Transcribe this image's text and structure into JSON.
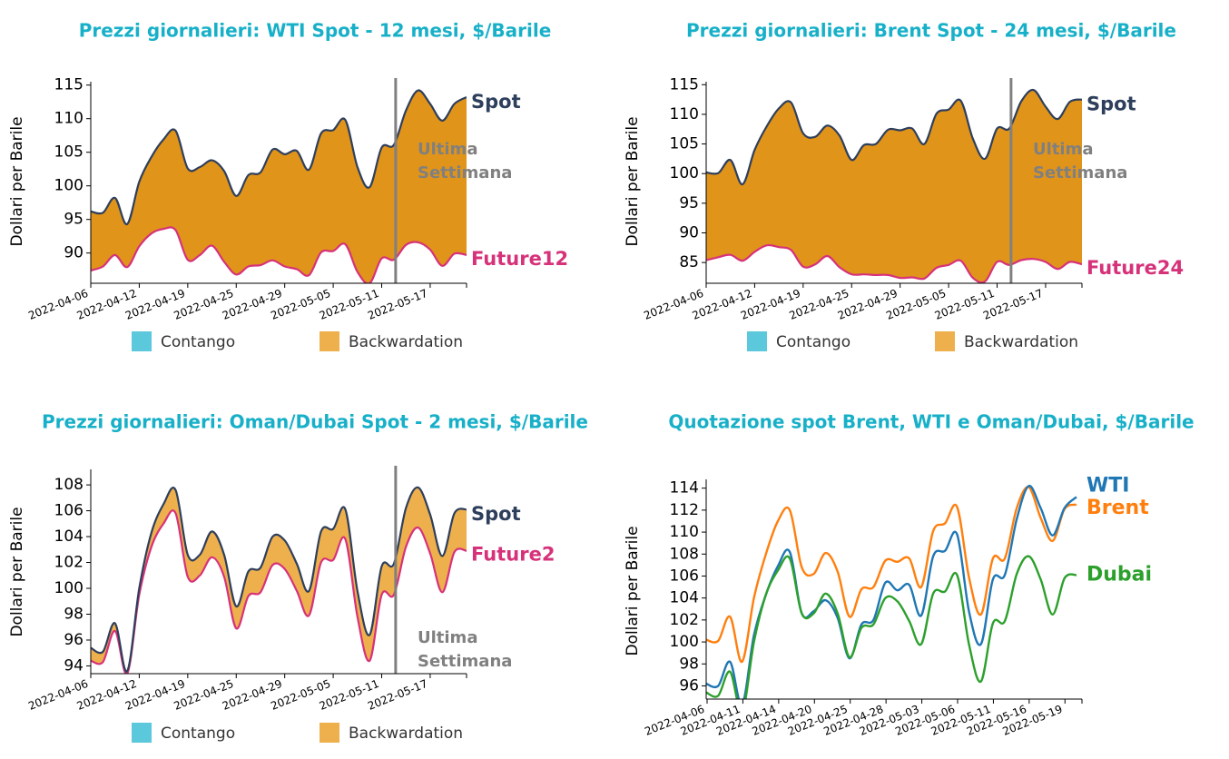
{
  "colors": {
    "title": "#17b0c8",
    "spot": "#2e3f5c",
    "future": "#d6327a",
    "backwardation_dark": "#e0941a",
    "backwardation_light": "#eeb04c",
    "contango": "#5bc8dc",
    "vline": "#808080",
    "wti": "#1f77b4",
    "brent": "#ff7f0e",
    "dubai": "#2ca02c"
  },
  "legend": {
    "contango": "Contango",
    "backwardation": "Backwardation"
  },
  "chart_data": [
    {
      "type": "area",
      "title": "Prezzi giornalieri: WTI Spot - 12 mesi, $/Barile",
      "ylabel": "Dollari per Barile",
      "ylim": [
        85.5,
        115.5
      ],
      "yticks": [
        90,
        95,
        100,
        105,
        110,
        115
      ],
      "xticks": [
        "2022-04-06",
        "2022-04-12",
        "2022-04-19",
        "2022-04-25",
        "2022-04-29",
        "2022-05-05",
        "2022-05-11",
        "2022-05-17"
      ],
      "fill_shade": "dark",
      "annotation": [
        "Ultima",
        "Settimana"
      ],
      "annotation_pos": "mid",
      "last_week_index": 34,
      "series": [
        {
          "name": "Spot",
          "values": [
            96.2,
            96.0,
            98.2,
            94.3,
            100.6,
            104.3,
            106.9,
            108.2,
            102.6,
            102.8,
            103.8,
            102.2,
            98.5,
            101.6,
            102.0,
            105.4,
            104.7,
            105.2,
            102.4,
            107.8,
            108.3,
            109.8,
            102.8,
            99.8,
            105.7,
            106.1,
            111.2,
            114.2,
            112.2,
            109.7,
            112.2,
            113.2
          ]
        },
        {
          "name": "Future12",
          "values": [
            87.4,
            88.0,
            89.7,
            87.9,
            91.0,
            92.9,
            93.6,
            93.4,
            89.0,
            89.7,
            91.1,
            88.7,
            86.8,
            88.0,
            88.2,
            88.9,
            88.0,
            87.6,
            86.7,
            90.1,
            90.3,
            91.3,
            87.2,
            85.5,
            89.2,
            89.0,
            91.2,
            91.6,
            90.5,
            88.1,
            89.9,
            89.7
          ]
        }
      ]
    },
    {
      "type": "area",
      "title": "Prezzi giornalieri: Brent Spot - 24 mesi, $/Barile",
      "ylabel": "Dollari per Barile",
      "ylim": [
        81.5,
        115.5
      ],
      "yticks": [
        85,
        90,
        95,
        100,
        105,
        110,
        115
      ],
      "xticks": [
        "2022-04-06",
        "2022-04-12",
        "2022-04-19",
        "2022-04-25",
        "2022-04-29",
        "2022-05-05",
        "2022-05-11",
        "2022-05-17"
      ],
      "fill_shade": "dark",
      "annotation": [
        "Ultima",
        "Settimana"
      ],
      "annotation_pos": "mid",
      "series": [
        {
          "name": "Spot",
          "values": [
            100.2,
            100.1,
            102.3,
            98.2,
            104.0,
            108.0,
            111.0,
            112.0,
            106.8,
            106.2,
            108.1,
            106.4,
            102.3,
            104.8,
            105.0,
            107.4,
            107.3,
            107.6,
            105.0,
            110.1,
            110.8,
            112.3,
            105.9,
            102.5,
            107.6,
            107.6,
            112.2,
            114.1,
            111.3,
            109.2,
            112.1,
            112.5
          ]
        },
        {
          "name": "Future24",
          "values": [
            85.4,
            85.9,
            86.3,
            85.3,
            86.8,
            87.9,
            87.6,
            87.1,
            84.3,
            84.7,
            86.1,
            84.2,
            83.0,
            83.0,
            82.9,
            82.9,
            82.4,
            82.5,
            82.3,
            84.1,
            84.6,
            85.3,
            82.4,
            81.8,
            85.1,
            84.6,
            85.4,
            85.6,
            85.1,
            83.9,
            85.1,
            84.7
          ]
        }
      ]
    },
    {
      "type": "area",
      "title": "Prezzi giornalieri: Oman/Dubai Spot - 2 mesi, $/Barile",
      "ylabel": "Dollari per Barile",
      "ylim": [
        93.4,
        109.2
      ],
      "yticks": [
        94,
        96,
        98,
        100,
        102,
        104,
        106,
        108
      ],
      "xticks": [
        "2022-04-06",
        "2022-04-12",
        "2022-04-19",
        "2022-04-25",
        "2022-04-29",
        "2022-05-05",
        "2022-05-11",
        "2022-05-17"
      ],
      "fill_shade": "light",
      "annotation": [
        "Ultima",
        "Settimana"
      ],
      "annotation_pos": "bottom",
      "series": [
        {
          "name": "Spot",
          "values": [
            95.4,
            95.1,
            97.3,
            93.6,
            100.0,
            104.3,
            106.5,
            107.6,
            102.6,
            102.6,
            104.4,
            102.6,
            98.6,
            101.3,
            101.6,
            104.0,
            103.7,
            101.9,
            99.8,
            104.4,
            104.6,
            106.1,
            99.8,
            96.4,
            101.7,
            101.9,
            106.2,
            107.8,
            105.7,
            102.5,
            105.8,
            106.1
          ]
        },
        {
          "name": "Future2",
          "values": [
            94.4,
            94.3,
            96.7,
            93.4,
            99.5,
            103.2,
            105.0,
            105.8,
            100.9,
            101.0,
            102.4,
            100.9,
            96.9,
            99.4,
            99.7,
            101.8,
            101.5,
            99.8,
            97.9,
            102.0,
            102.2,
            103.8,
            97.8,
            94.4,
            99.5,
            99.5,
            103.2,
            104.7,
            102.7,
            99.7,
            102.8,
            102.9
          ]
        }
      ]
    },
    {
      "type": "line",
      "title": "Quotazione spot Brent, WTI e Oman/Dubai, $/Barile",
      "ylabel": "Dollari per Barile",
      "ylim": [
        94.8,
        114.8
      ],
      "yticks": [
        96,
        98,
        100,
        102,
        104,
        106,
        108,
        110,
        112,
        114
      ],
      "xticks": [
        "2022-04-06",
        "2022-04-11",
        "2022-04-14",
        "2022-04-20",
        "2022-04-25",
        "2022-04-28",
        "2022-05-03",
        "2022-05-06",
        "2022-05-11",
        "2022-05-16",
        "2022-05-19"
      ],
      "series": [
        {
          "name": "WTI",
          "values": [
            96.2,
            96.0,
            98.2,
            94.3,
            100.6,
            104.3,
            106.9,
            108.2,
            102.6,
            102.8,
            103.8,
            102.2,
            98.5,
            101.6,
            102.0,
            105.4,
            104.7,
            105.2,
            102.4,
            107.8,
            108.3,
            109.8,
            102.8,
            99.8,
            105.7,
            106.1,
            111.2,
            114.2,
            112.2,
            109.7,
            112.2,
            113.2
          ]
        },
        {
          "name": "Brent",
          "values": [
            100.2,
            100.1,
            102.3,
            98.2,
            104.0,
            108.0,
            111.0,
            112.0,
            106.8,
            106.2,
            108.1,
            106.4,
            102.3,
            104.8,
            105.0,
            107.4,
            107.3,
            107.6,
            105.0,
            110.1,
            110.8,
            112.3,
            105.9,
            102.5,
            107.6,
            107.6,
            112.2,
            114.1,
            111.3,
            109.2,
            112.1,
            112.5
          ]
        },
        {
          "name": "Dubai",
          "values": [
            95.4,
            95.1,
            97.3,
            93.6,
            100.0,
            104.3,
            106.5,
            107.6,
            102.6,
            102.6,
            104.4,
            102.6,
            98.6,
            101.3,
            101.6,
            104.0,
            103.7,
            101.9,
            99.8,
            104.4,
            104.6,
            106.1,
            99.8,
            96.4,
            101.7,
            101.9,
            106.2,
            107.8,
            105.7,
            102.5,
            105.8,
            106.1
          ]
        }
      ]
    }
  ]
}
